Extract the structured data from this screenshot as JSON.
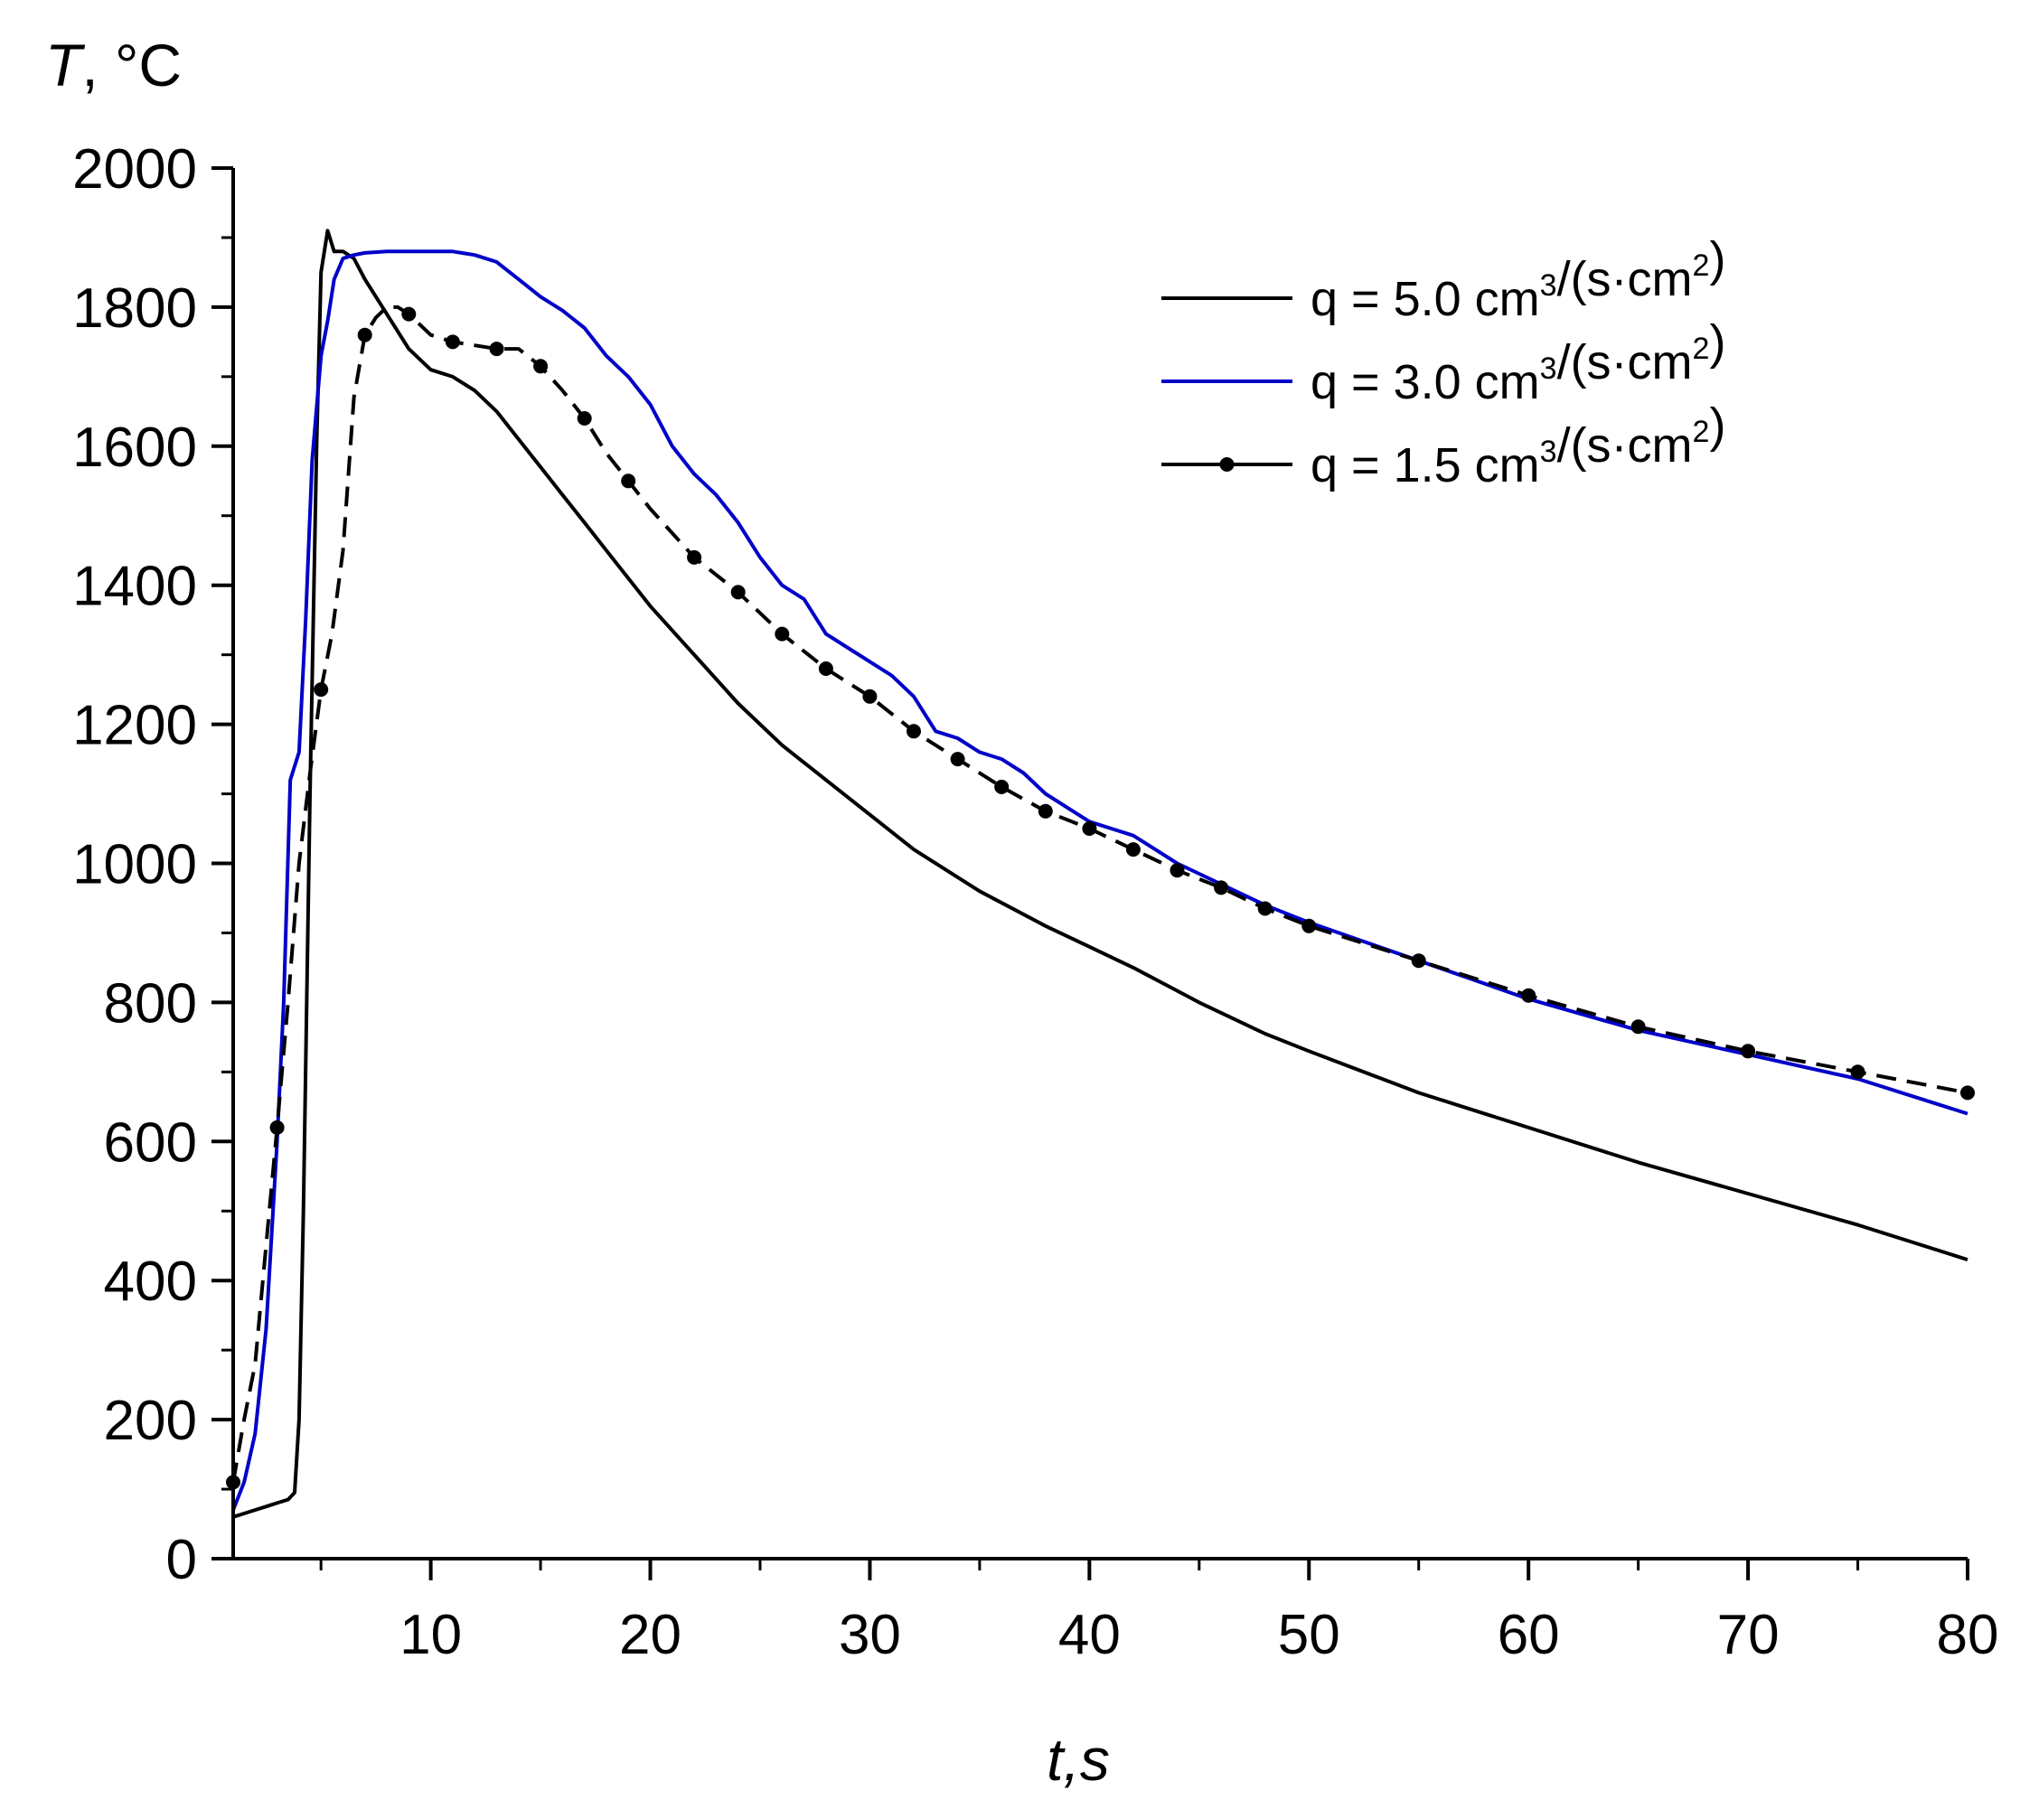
{
  "chart_data": {
    "type": "line",
    "title": "",
    "xlabel": "t,s",
    "ylabel_italic": "T",
    "ylabel_unit": ", °C",
    "xlim": [
      1,
      80
    ],
    "ylim": [
      0,
      2000
    ],
    "xticks": [
      10,
      20,
      30,
      40,
      50,
      60,
      70,
      80
    ],
    "yticks": [
      0,
      200,
      400,
      600,
      800,
      1000,
      1200,
      1400,
      1600,
      1800,
      2000
    ],
    "grid": false,
    "legend_position": "top-right",
    "series": [
      {
        "name": "q = 5.0 cm3/(s·cm2)",
        "label_main": "q = 5.0 cm",
        "label_sup1": "3",
        "label_mid": "/(s·cm",
        "label_sup2": "2",
        "label_end": ")",
        "color": "#000000",
        "style": "solid",
        "x": [
          1,
          1.5,
          2,
          2.5,
          3,
          3.5,
          3.8,
          4,
          4.2,
          4.5,
          4.8,
          5,
          5.3,
          5.6,
          6,
          6.5,
          7,
          8,
          9,
          10,
          11,
          12,
          13,
          14,
          15,
          16,
          17,
          18,
          19,
          20,
          22,
          24,
          26,
          28,
          30,
          32,
          35,
          38,
          40,
          42,
          45,
          48,
          50,
          55,
          60,
          65,
          70,
          75,
          80
        ],
        "y": [
          60,
          65,
          70,
          75,
          80,
          85,
          95,
          200,
          500,
          1100,
          1600,
          1850,
          1910,
          1880,
          1880,
          1870,
          1840,
          1790,
          1740,
          1710,
          1700,
          1680,
          1650,
          1610,
          1570,
          1530,
          1490,
          1450,
          1410,
          1370,
          1300,
          1230,
          1170,
          1120,
          1070,
          1020,
          960,
          910,
          880,
          850,
          800,
          755,
          730,
          670,
          620,
          570,
          525,
          480,
          430
        ]
      },
      {
        "name": "q = 3.0 cm3/(s·cm2)",
        "label_main": "q = 3.0 cm",
        "label_sup1": "3",
        "label_mid": "/(s·cm",
        "label_sup2": "2",
        "label_end": ")",
        "color": "#0000c8",
        "style": "solid",
        "x": [
          1,
          1.5,
          2,
          2.5,
          3,
          3.3,
          3.6,
          4,
          4.3,
          4.6,
          5,
          5.3,
          5.6,
          6,
          6.5,
          7,
          8,
          9,
          10,
          11,
          12,
          13,
          14,
          15,
          16,
          17,
          18,
          19,
          20,
          21,
          22,
          23,
          24,
          25,
          26,
          27,
          28,
          29,
          30,
          31,
          32,
          33,
          34,
          35,
          36,
          37,
          38,
          39,
          40,
          41,
          42,
          43,
          44,
          45,
          46,
          48,
          50,
          55,
          60,
          65,
          70,
          75,
          80
        ],
        "y": [
          70,
          110,
          180,
          330,
          600,
          800,
          1120,
          1160,
          1350,
          1580,
          1730,
          1780,
          1840,
          1870,
          1875,
          1878,
          1880,
          1880,
          1880,
          1880,
          1875,
          1865,
          1840,
          1815,
          1795,
          1770,
          1730,
          1700,
          1660,
          1600,
          1560,
          1530,
          1490,
          1440,
          1400,
          1380,
          1330,
          1310,
          1290,
          1270,
          1240,
          1190,
          1180,
          1160,
          1150,
          1130,
          1100,
          1080,
          1060,
          1050,
          1040,
          1020,
          1000,
          985,
          970,
          940,
          915,
          860,
          805,
          760,
          725,
          690,
          640
        ]
      },
      {
        "name": "q = 1.5 cm3/(s·cm2)",
        "label_main": "q = 1.5 cm",
        "label_sup1": "3",
        "label_mid": "/(s·cm",
        "label_sup2": "2",
        "label_end": ")",
        "color": "#000000",
        "style": "dashed-markers",
        "x": [
          1,
          1.5,
          2,
          2.5,
          3,
          3.5,
          4,
          4.5,
          5,
          5.5,
          6,
          6.5,
          7,
          7.5,
          8,
          8.5,
          9,
          10,
          11,
          12,
          13,
          14,
          15,
          16,
          17,
          18,
          19,
          20,
          22,
          24,
          26,
          28,
          30,
          32,
          34,
          36,
          38,
          40,
          42,
          44,
          46,
          48,
          50,
          55,
          60,
          65,
          70,
          75,
          80
        ],
        "y": [
          110,
          200,
          280,
          450,
          620,
          800,
          1000,
          1130,
          1250,
          1330,
          1450,
          1670,
          1760,
          1785,
          1800,
          1800,
          1790,
          1760,
          1750,
          1745,
          1740,
          1740,
          1715,
          1680,
          1640,
          1590,
          1550,
          1510,
          1440,
          1390,
          1330,
          1280,
          1240,
          1190,
          1150,
          1110,
          1075,
          1050,
          1020,
          990,
          965,
          935,
          910,
          860,
          810,
          765,
          730,
          700,
          670
        ]
      }
    ]
  }
}
